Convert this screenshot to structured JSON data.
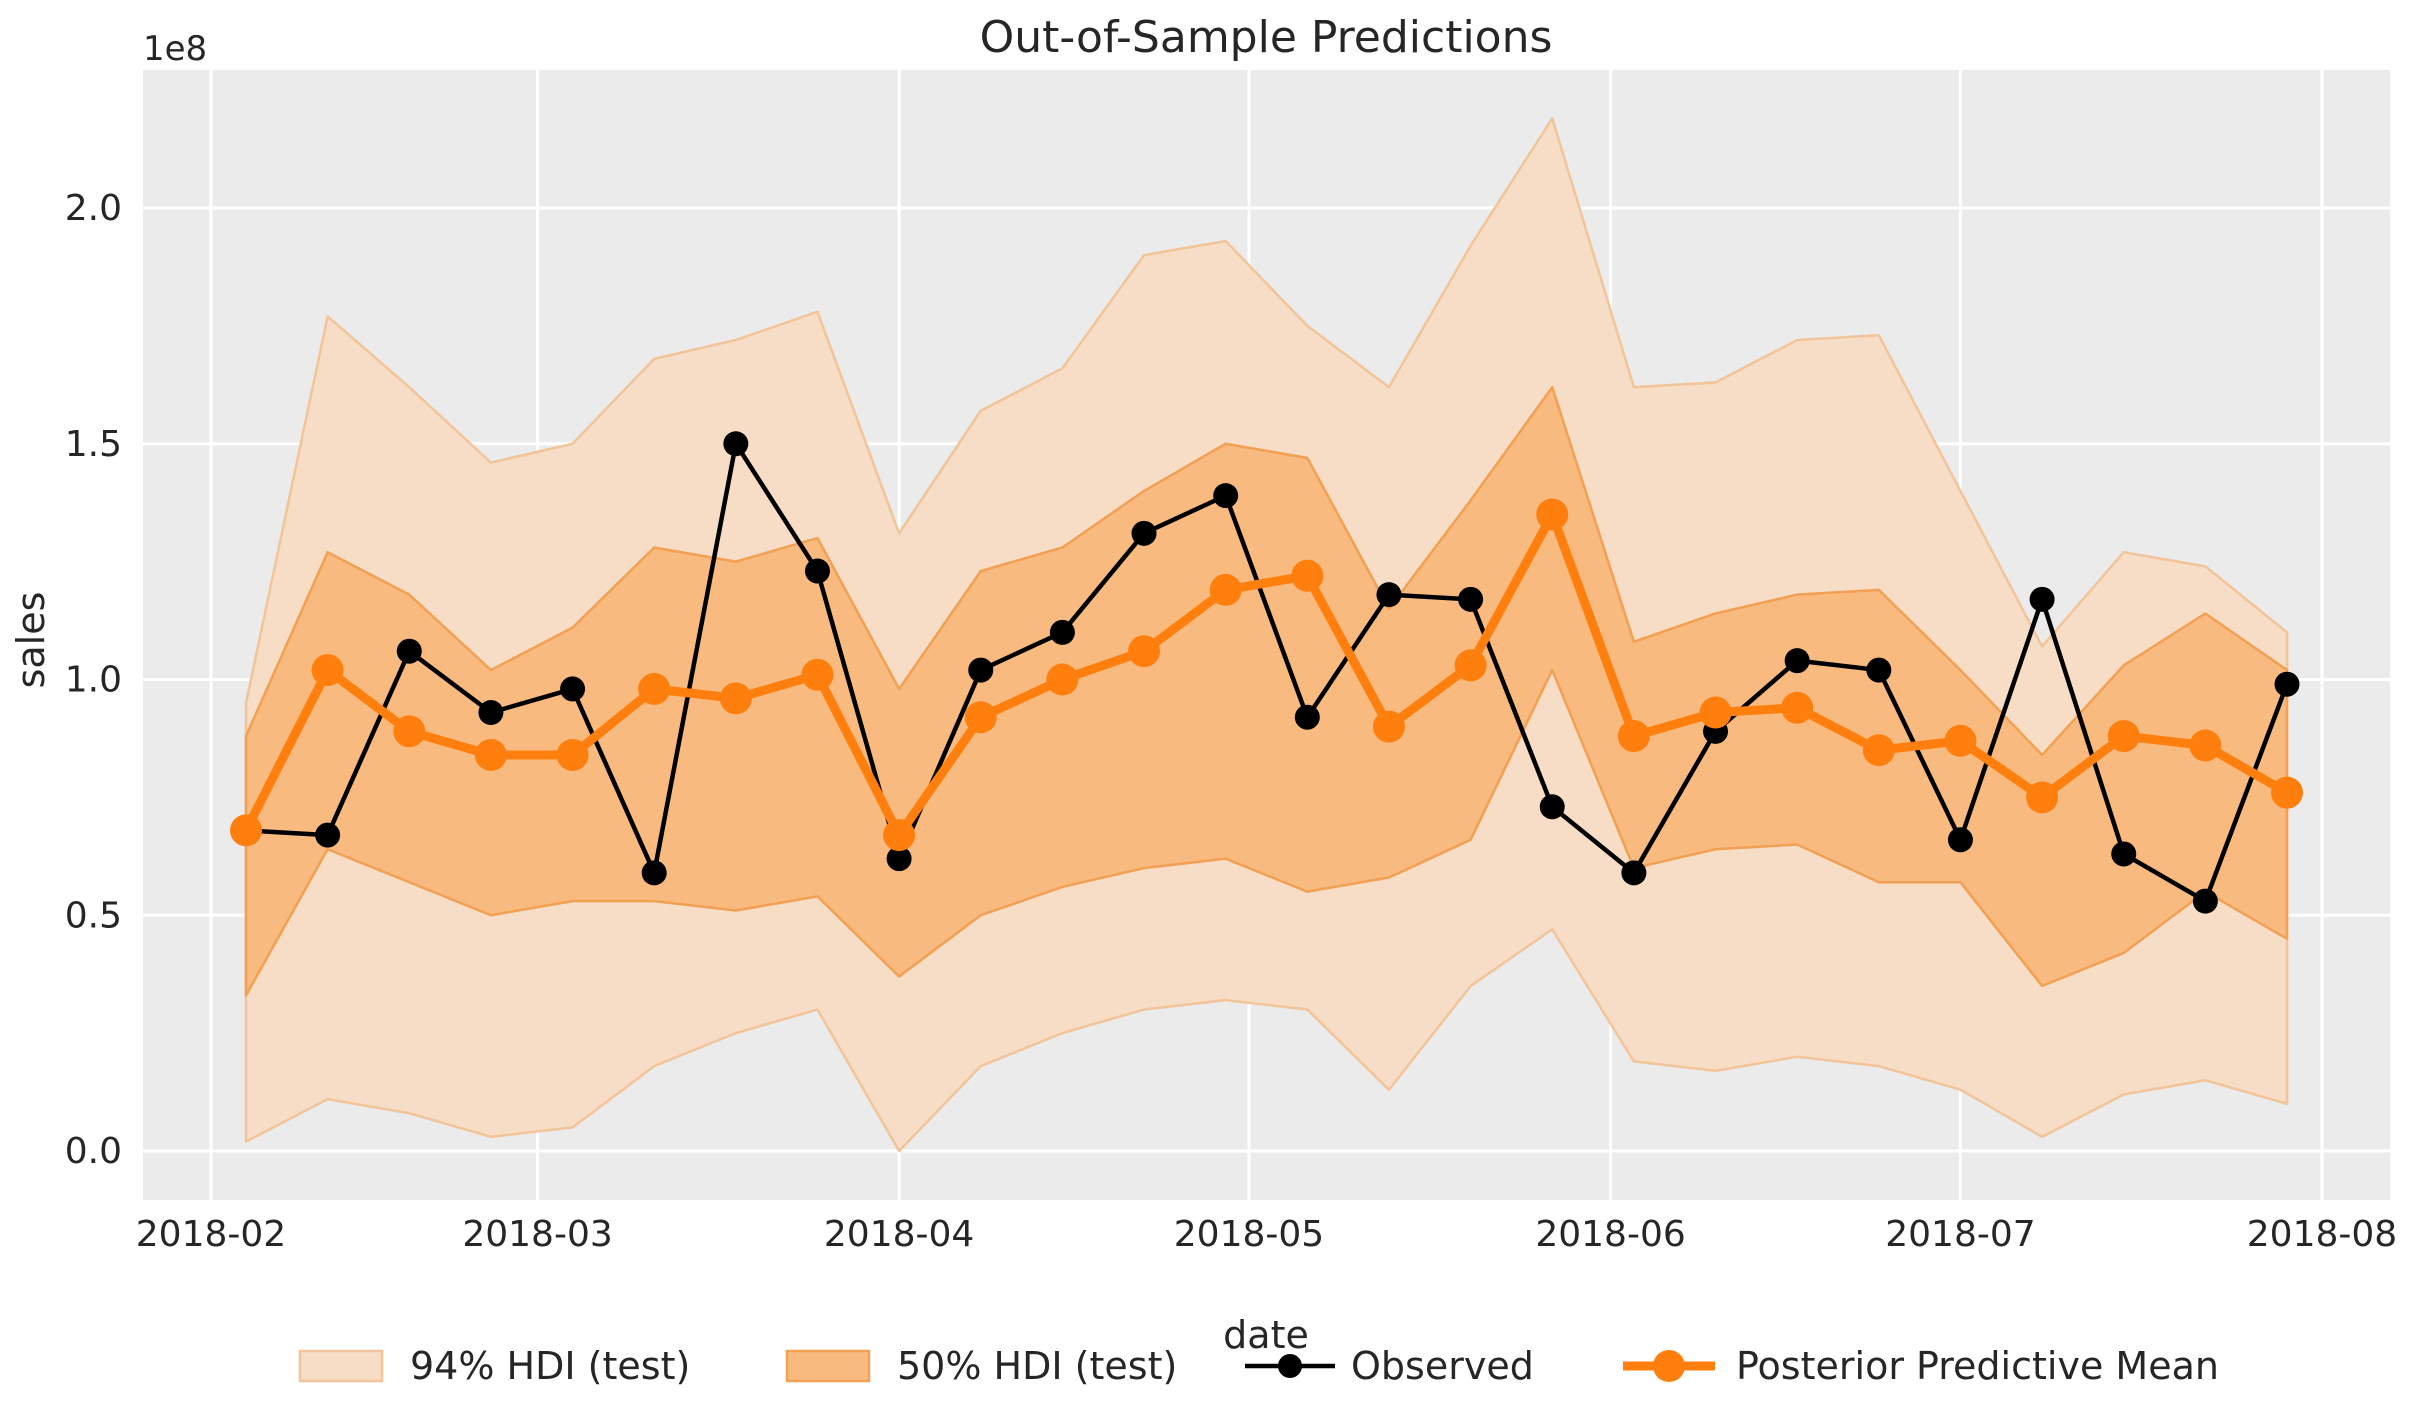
{
  "figure": {
    "title": "Out-of-Sample Predictions",
    "offset_label": "1e8"
  },
  "axes": {
    "xlabel": "date",
    "ylabel": "sales",
    "x_tick_labels": [
      "2018-02",
      "2018-03",
      "2018-04",
      "2018-05",
      "2018-06",
      "2018-07",
      "2018-08"
    ],
    "y_tick_labels": [
      "0.0",
      "0.5",
      "1.0",
      "1.5",
      "2.0"
    ]
  },
  "legend": {
    "items": [
      {
        "label": "94% HDI (test)",
        "marker": "band-swatch"
      },
      {
        "label": "50% HDI (test)",
        "marker": "band-swatch"
      },
      {
        "label": "Observed",
        "marker": "line-dot"
      },
      {
        "label": "Posterior Predictive Mean",
        "marker": "line-dot"
      }
    ]
  },
  "colors": {
    "plot_background": "#ebebeb",
    "grid": "#ffffff",
    "observed": "#000000",
    "posterior_mean": "#ff7f0e",
    "hdi94_fill": "#f7ddc5",
    "hdi94_edge": "#f2c499",
    "hdi50_fill": "#f8ba7e",
    "hdi50_edge": "#f1a054",
    "text": "#262626"
  },
  "chart_data": {
    "type": "line",
    "title": "Out-of-Sample Predictions",
    "xlabel": "date",
    "ylabel": "sales",
    "y_scale_factor": "1e8",
    "ylim": [
      -0.1,
      2.29
    ],
    "xlim": [
      "2018-02-01",
      "2018-08-06"
    ],
    "grid": true,
    "legend_position": "bottom",
    "x_tick_labels": [
      "2018-02",
      "2018-03",
      "2018-04",
      "2018-05",
      "2018-06",
      "2018-07",
      "2018-08"
    ],
    "y_tick_labels": [
      "0.0",
      "0.5",
      "1.0",
      "1.5",
      "2.0"
    ],
    "x": [
      "2018-02-04",
      "2018-02-11",
      "2018-02-18",
      "2018-02-25",
      "2018-03-04",
      "2018-03-11",
      "2018-03-18",
      "2018-03-25",
      "2018-04-01",
      "2018-04-08",
      "2018-04-15",
      "2018-04-22",
      "2018-04-29",
      "2018-05-06",
      "2018-05-13",
      "2018-05-20",
      "2018-05-27",
      "2018-06-03",
      "2018-06-10",
      "2018-06-17",
      "2018-06-24",
      "2018-07-01",
      "2018-07-08",
      "2018-07-15",
      "2018-07-22",
      "2018-07-29"
    ],
    "series": [
      {
        "name": "94% HDI (test)",
        "type": "band",
        "lower": [
          0.02,
          0.11,
          0.08,
          0.03,
          0.05,
          0.18,
          0.25,
          0.3,
          0.0,
          0.18,
          0.25,
          0.3,
          0.32,
          0.3,
          0.13,
          0.35,
          0.47,
          0.19,
          0.17,
          0.2,
          0.18,
          0.13,
          0.03,
          0.12,
          0.15,
          0.1
        ],
        "upper": [
          0.95,
          1.77,
          1.62,
          1.46,
          1.5,
          1.68,
          1.72,
          1.78,
          1.31,
          1.57,
          1.66,
          1.9,
          1.93,
          1.75,
          1.62,
          1.92,
          2.19,
          1.62,
          1.63,
          1.72,
          1.73,
          1.4,
          1.07,
          1.27,
          1.24,
          1.1
        ]
      },
      {
        "name": "50% HDI (test)",
        "type": "band",
        "lower": [
          0.33,
          0.64,
          0.57,
          0.5,
          0.53,
          0.53,
          0.51,
          0.54,
          0.37,
          0.5,
          0.56,
          0.6,
          0.62,
          0.55,
          0.58,
          0.66,
          1.02,
          0.6,
          0.64,
          0.65,
          0.57,
          0.57,
          0.35,
          0.42,
          0.55,
          0.45
        ],
        "upper": [
          0.88,
          1.27,
          1.18,
          1.02,
          1.11,
          1.28,
          1.25,
          1.3,
          0.98,
          1.23,
          1.28,
          1.4,
          1.5,
          1.47,
          1.15,
          1.38,
          1.62,
          1.08,
          1.14,
          1.18,
          1.19,
          1.02,
          0.84,
          1.03,
          1.14,
          1.02
        ]
      },
      {
        "name": "Observed",
        "type": "line-markers",
        "values": [
          0.68,
          0.67,
          1.06,
          0.93,
          0.98,
          0.59,
          1.5,
          1.23,
          0.62,
          1.02,
          1.1,
          1.31,
          1.39,
          0.92,
          1.18,
          1.17,
          0.73,
          0.59,
          0.89,
          1.04,
          1.02,
          0.66,
          1.17,
          0.63,
          0.53,
          0.99
        ]
      },
      {
        "name": "Posterior Predictive Mean",
        "type": "line-markers",
        "values": [
          0.68,
          1.02,
          0.89,
          0.84,
          0.84,
          0.98,
          0.96,
          1.01,
          0.67,
          0.92,
          1.0,
          1.06,
          1.19,
          1.22,
          0.9,
          1.03,
          1.35,
          0.88,
          0.93,
          0.94,
          0.85,
          0.87,
          0.75,
          0.88,
          0.86,
          0.76
        ]
      }
    ]
  }
}
